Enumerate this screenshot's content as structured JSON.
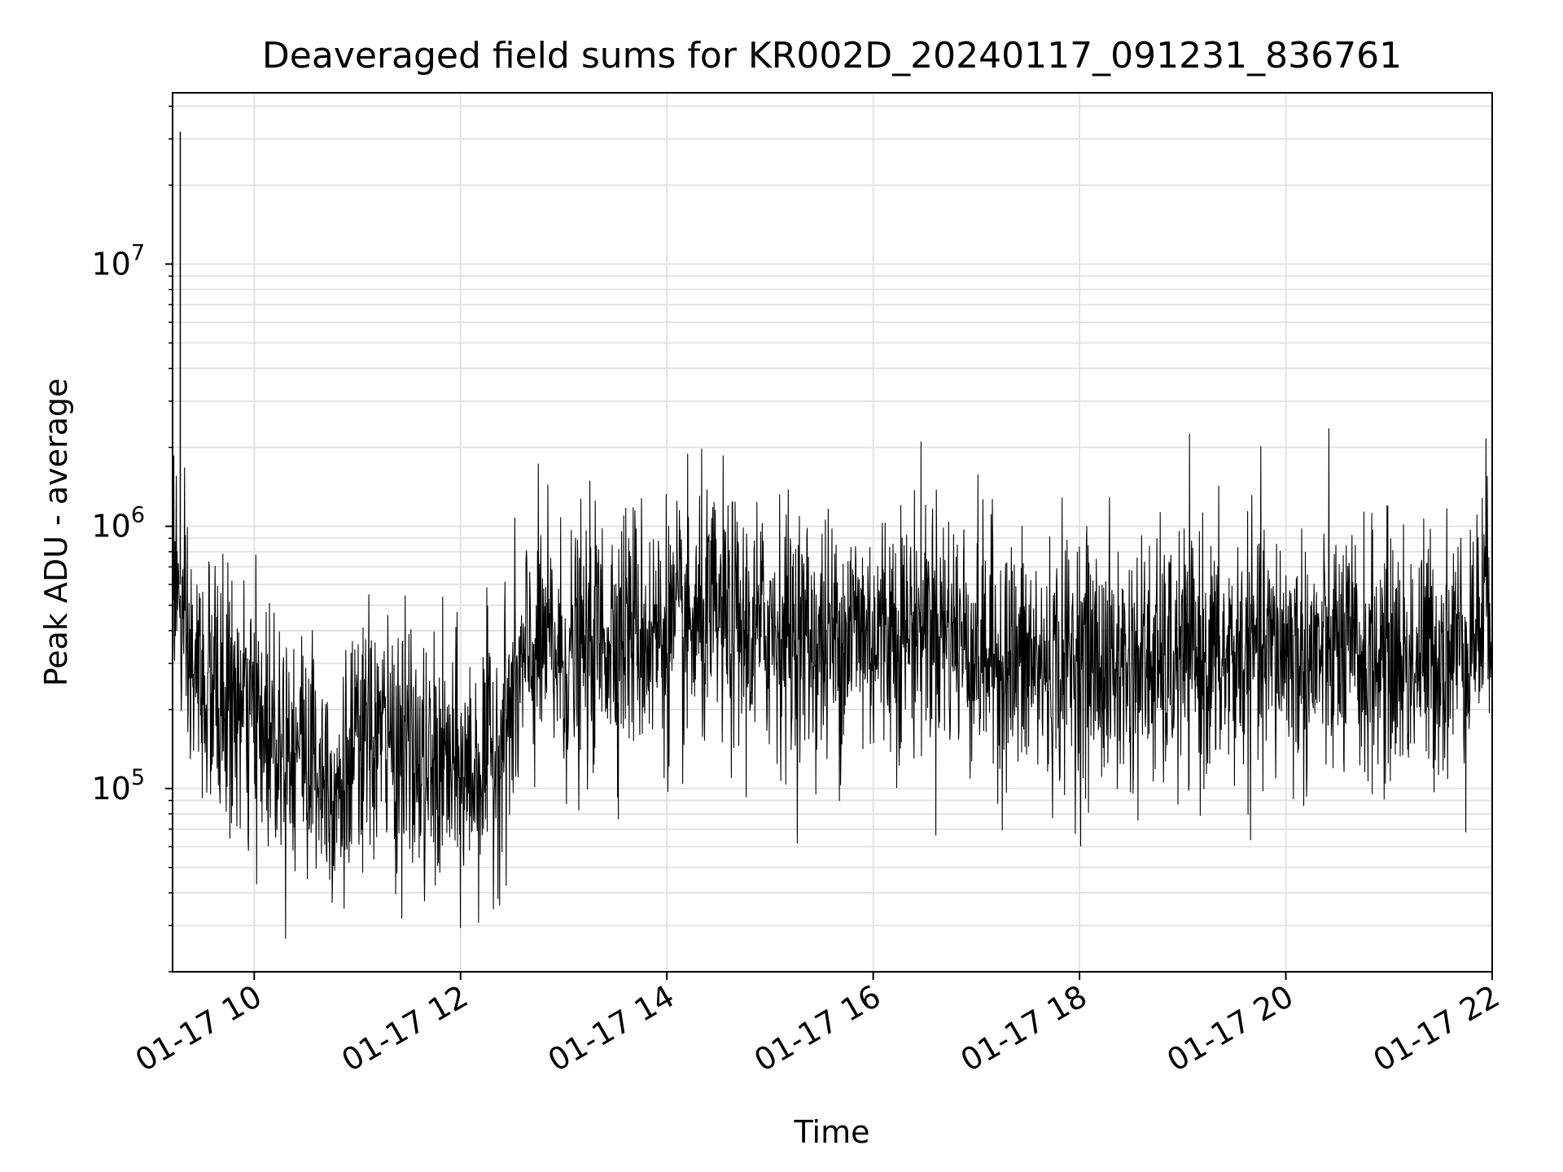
{
  "chart_data": {
    "type": "line",
    "title": "Deaveraged field sums for KR002D_20240117_091231_836761",
    "xlabel": "Time",
    "ylabel": "Peak ADU - average",
    "xlim": [
      "2024-01-17T09:12:31",
      "2024-01-17T22:00:00"
    ],
    "ylim": [
      20000,
      45000000
    ],
    "yscale": "log",
    "grid": true,
    "legend": "none",
    "line_color": "#000000",
    "x_tick_labels": [
      "01-17 10",
      "01-17 12",
      "01-17 14",
      "01-17 16",
      "01-17 18",
      "01-17 20",
      "01-17 22"
    ],
    "x_tick_times": [
      "2024-01-17T10:00",
      "2024-01-17T12:00",
      "2024-01-17T14:00",
      "2024-01-17T16:00",
      "2024-01-17T18:00",
      "2024-01-17T20:00",
      "2024-01-17T22:00"
    ],
    "y_tick_labels": [
      {
        "base": "10",
        "exp": "5",
        "value": 100000
      },
      {
        "base": "10",
        "exp": "6",
        "value": 1000000
      },
      {
        "base": "10",
        "exp": "7",
        "value": 10000000
      }
    ],
    "series": [
      {
        "x": [
          "09:12",
          "09:20",
          "09:30",
          "09:40",
          "09:50",
          "10:00",
          "10:10",
          "10:20",
          "10:30",
          "10:40",
          "10:50",
          "11:00",
          "11:10",
          "11:20",
          "11:30",
          "11:40",
          "11:50",
          "12:00",
          "12:10",
          "12:20",
          "12:30",
          "12:40",
          "12:50",
          "13:00",
          "13:10",
          "13:20",
          "13:30",
          "13:40",
          "13:50",
          "14:00",
          "14:10",
          "14:20",
          "14:30",
          "14:40",
          "14:50",
          "15:00",
          "15:10",
          "15:20",
          "15:30",
          "15:40",
          "15:50",
          "16:00",
          "16:10",
          "16:20",
          "16:30",
          "16:40",
          "16:50",
          "17:00",
          "17:10",
          "17:20",
          "17:30",
          "17:40",
          "17:50",
          "18:00",
          "18:10",
          "18:20",
          "18:30",
          "18:40",
          "18:50",
          "19:00",
          "19:10",
          "19:20",
          "19:30",
          "19:40",
          "19:50",
          "20:00",
          "20:10",
          "20:20",
          "20:30",
          "20:40",
          "20:50",
          "21:00",
          "21:10",
          "21:20",
          "21:30",
          "21:40",
          "21:50",
          "22:00"
        ],
        "y": [
          900000,
          300000,
          250000,
          220000,
          200000,
          180000,
          170000,
          160000,
          140000,
          120000,
          100000,
          130000,
          160000,
          150000,
          140000,
          110000,
          120000,
          110000,
          120000,
          140000,
          200000,
          320000,
          350000,
          300000,
          320000,
          380000,
          400000,
          420000,
          380000,
          400000,
          380000,
          420000,
          450000,
          400000,
          380000,
          420000,
          400000,
          380000,
          350000,
          380000,
          420000,
          380000,
          420000,
          400000,
          450000,
          420000,
          380000,
          350000,
          320000,
          300000,
          300000,
          280000,
          300000,
          320000,
          300000,
          280000,
          290000,
          300000,
          280000,
          310000,
          320000,
          300000,
          310000,
          330000,
          320000,
          350000,
          300000,
          320000,
          330000,
          310000,
          300000,
          320000,
          300000,
          320000,
          330000,
          350000,
          400000,
          600000
        ]
      }
    ]
  }
}
